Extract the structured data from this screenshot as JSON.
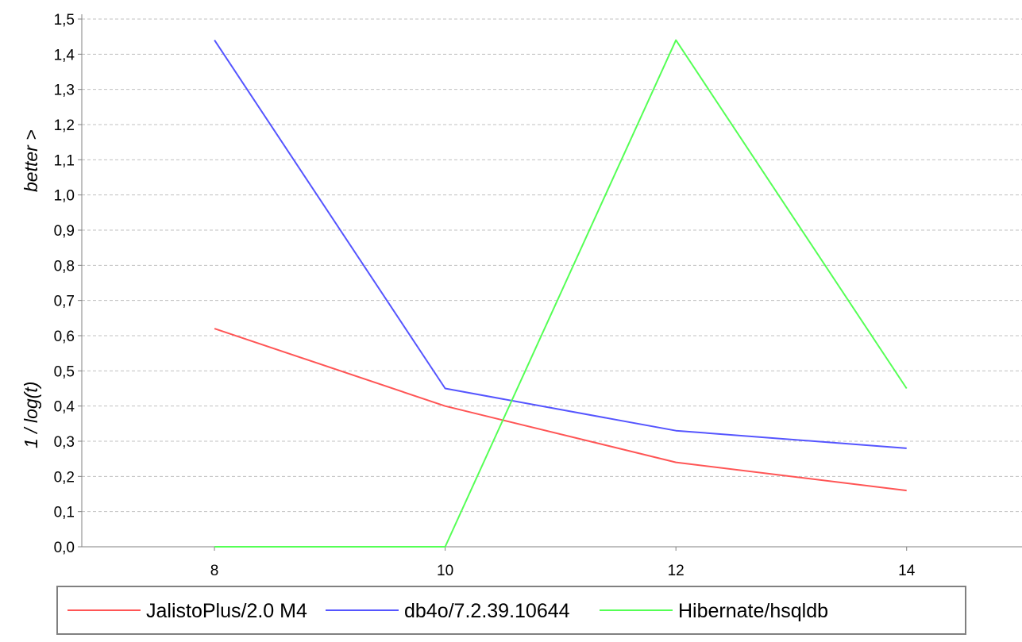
{
  "chart_data": {
    "type": "line",
    "title": "",
    "xlabel": "",
    "ylabel_top": "better >",
    "ylabel_bottom": "1  /  log(t)",
    "x": [
      8,
      10,
      12,
      14
    ],
    "xlim": [
      6.85,
      15.0
    ],
    "ylim": [
      0.0,
      1.5
    ],
    "x_ticks": [
      {
        "value": 8,
        "label": "8"
      },
      {
        "value": 10,
        "label": "10"
      },
      {
        "value": 12,
        "label": "12"
      },
      {
        "value": 14,
        "label": "14"
      }
    ],
    "y_ticks": [
      {
        "value": 0.0,
        "label": "0,0"
      },
      {
        "value": 0.1,
        "label": "0,1"
      },
      {
        "value": 0.2,
        "label": "0,2"
      },
      {
        "value": 0.3,
        "label": "0,3"
      },
      {
        "value": 0.4,
        "label": "0,4"
      },
      {
        "value": 0.5,
        "label": "0,5"
      },
      {
        "value": 0.6,
        "label": "0,6"
      },
      {
        "value": 0.7,
        "label": "0,7"
      },
      {
        "value": 0.8,
        "label": "0,8"
      },
      {
        "value": 0.9,
        "label": "0,9"
      },
      {
        "value": 1.0,
        "label": "1,0"
      },
      {
        "value": 1.1,
        "label": "1,1"
      },
      {
        "value": 1.2,
        "label": "1,2"
      },
      {
        "value": 1.3,
        "label": "1,3"
      },
      {
        "value": 1.4,
        "label": "1,4"
      },
      {
        "value": 1.5,
        "label": "1,5"
      }
    ],
    "grid": true,
    "legend_position": "bottom",
    "series": [
      {
        "name": "JalistoPlus/2.0 M4",
        "color": "#ff5555",
        "values": [
          0.62,
          0.4,
          0.24,
          0.16
        ]
      },
      {
        "name": "db4o/7.2.39.10644",
        "color": "#5555ff",
        "values": [
          1.44,
          0.45,
          0.33,
          0.28
        ]
      },
      {
        "name": "Hibernate/hsqldb",
        "color": "#55ff55",
        "values": [
          0.0,
          0.0,
          1.44,
          0.45
        ]
      }
    ]
  },
  "colors": {
    "grid": "#c0c0c0",
    "axis": "#808080",
    "legend_border": "#808080"
  }
}
